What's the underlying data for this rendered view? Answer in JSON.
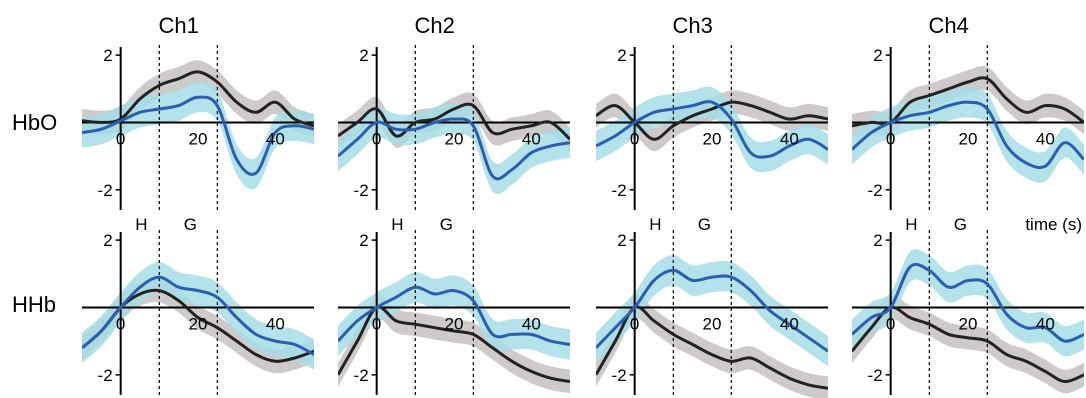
{
  "chart_data": {
    "type": "line",
    "columns": [
      "Ch1",
      "Ch2",
      "Ch3",
      "Ch4"
    ],
    "rows": [
      "HbO",
      "HHb"
    ],
    "event_markers": [
      {
        "label": "H",
        "x": 10
      },
      {
        "label": "G",
        "x": 25
      }
    ],
    "x_axis": {
      "xlim": [
        -10,
        50
      ],
      "ticks": [
        0,
        20,
        40
      ],
      "label": "time (s)"
    },
    "y_axis": {
      "ylim": [
        -2.6,
        2.3
      ],
      "ticks": [
        -2,
        0,
        2
      ]
    },
    "colors": {
      "black_series": "#222222",
      "black_band": "#c9c4c4",
      "blue_series": "#2a5fb0",
      "blue_band": "#a6dde8"
    },
    "x": [
      -10,
      -5,
      0,
      5,
      10,
      15,
      20,
      25,
      30,
      35,
      40,
      45,
      50
    ],
    "panels": [
      {
        "row": "HbO",
        "column": "Ch1",
        "black": [
          0.05,
          0.0,
          0.1,
          0.7,
          1.1,
          1.3,
          1.5,
          1.2,
          0.6,
          0.3,
          0.6,
          0.1,
          -0.1
        ],
        "blue": [
          -0.3,
          -0.2,
          0.05,
          0.3,
          0.4,
          0.5,
          0.75,
          0.5,
          -1.1,
          -1.5,
          -0.3,
          -0.1,
          -0.2
        ]
      },
      {
        "row": "HHb",
        "column": "Ch1",
        "black": [
          -1.2,
          -0.7,
          0.0,
          0.4,
          0.5,
          0.2,
          -0.3,
          -0.6,
          -1.0,
          -1.4,
          -1.6,
          -1.5,
          -1.3
        ],
        "blue": [
          -1.2,
          -0.7,
          0.0,
          0.6,
          0.9,
          0.6,
          0.5,
          0.3,
          -0.3,
          -0.8,
          -1.0,
          -1.1,
          -1.4
        ]
      },
      {
        "row": "HbO",
        "column": "Ch2",
        "black": [
          -0.4,
          0.0,
          0.4,
          -0.4,
          0.0,
          0.1,
          0.4,
          0.5,
          -0.3,
          -0.2,
          -0.1,
          0.0,
          -0.5
        ],
        "blue": [
          -1.0,
          -0.5,
          0.0,
          -0.2,
          -0.2,
          0.0,
          0.1,
          -0.1,
          -1.6,
          -1.4,
          -0.9,
          -0.7,
          -0.6
        ]
      },
      {
        "row": "HHb",
        "column": "Ch2",
        "black": [
          -2.0,
          -1.0,
          0.0,
          -0.4,
          -0.5,
          -0.6,
          -0.7,
          -0.8,
          -1.2,
          -1.6,
          -1.9,
          -2.1,
          -2.2
        ],
        "blue": [
          -1.0,
          -0.4,
          0.0,
          0.3,
          0.6,
          0.4,
          0.5,
          0.2,
          -0.8,
          -0.8,
          -0.8,
          -1.0,
          -1.1
        ]
      },
      {
        "row": "HbO",
        "column": "Ch3",
        "black": [
          0.2,
          0.5,
          0.0,
          -0.5,
          -0.1,
          0.2,
          0.4,
          0.6,
          0.5,
          0.3,
          0.1,
          0.2,
          0.1
        ],
        "blue": [
          -0.7,
          -0.4,
          0.0,
          0.3,
          0.4,
          0.5,
          0.6,
          0.1,
          -0.9,
          -1.0,
          -0.7,
          -0.5,
          -0.8
        ]
      },
      {
        "row": "HHb",
        "column": "Ch3",
        "black": [
          -2.0,
          -1.0,
          0.0,
          -0.4,
          -0.8,
          -1.1,
          -1.4,
          -1.6,
          -1.5,
          -1.8,
          -2.1,
          -2.3,
          -2.4
        ],
        "blue": [
          -1.2,
          -0.6,
          0.0,
          0.8,
          1.1,
          0.8,
          0.9,
          0.9,
          0.5,
          -0.1,
          -0.5,
          -0.9,
          -1.3
        ]
      },
      {
        "row": "HbO",
        "column": "Ch4",
        "black": [
          -0.1,
          0.0,
          0.0,
          0.6,
          0.8,
          1.0,
          1.2,
          1.3,
          0.7,
          0.3,
          0.5,
          0.4,
          0.0
        ],
        "blue": [
          -0.8,
          -0.3,
          0.0,
          0.2,
          0.3,
          0.5,
          0.6,
          0.4,
          -0.7,
          -1.2,
          -1.3,
          -0.6,
          -1.1
        ]
      },
      {
        "row": "HHb",
        "column": "Ch4",
        "black": [
          -1.3,
          -0.6,
          0.0,
          -0.3,
          -0.5,
          -0.8,
          -0.9,
          -1.0,
          -1.4,
          -1.6,
          -1.9,
          -2.2,
          -2.0
        ],
        "blue": [
          -0.8,
          -0.3,
          0.0,
          1.2,
          1.1,
          0.6,
          0.8,
          0.7,
          -0.2,
          -0.6,
          -0.6,
          -1.0,
          -0.8
        ]
      }
    ]
  }
}
